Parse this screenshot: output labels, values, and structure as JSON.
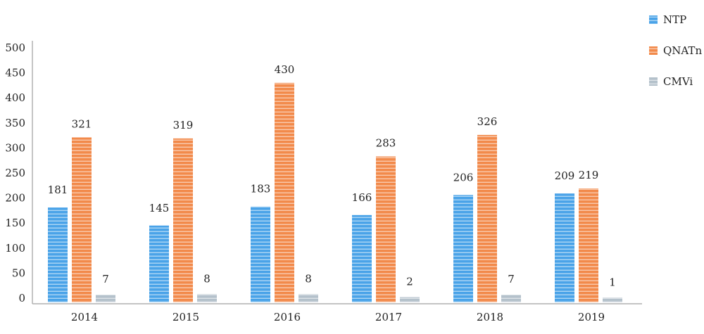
{
  "chart_data": {
    "type": "bar",
    "categories": [
      "2014",
      "2015",
      "2016",
      "2017",
      "2018",
      "2019"
    ],
    "series": [
      {
        "name": "NTP",
        "values": [
          181,
          145,
          183,
          166,
          206,
          209
        ],
        "color": "#4aa3e8"
      },
      {
        "name": "QNATn",
        "values": [
          321,
          319,
          430,
          283,
          326,
          219
        ],
        "color": "#f28a4b"
      },
      {
        "name": "CMVi",
        "values": [
          7,
          8,
          8,
          2,
          7,
          1
        ],
        "color": "#b4c1cb"
      }
    ],
    "yticks": [
      0,
      50,
      100,
      150,
      200,
      250,
      300,
      350,
      400,
      450,
      500
    ],
    "ylim": [
      0,
      500
    ],
    "legend_position": "right"
  }
}
